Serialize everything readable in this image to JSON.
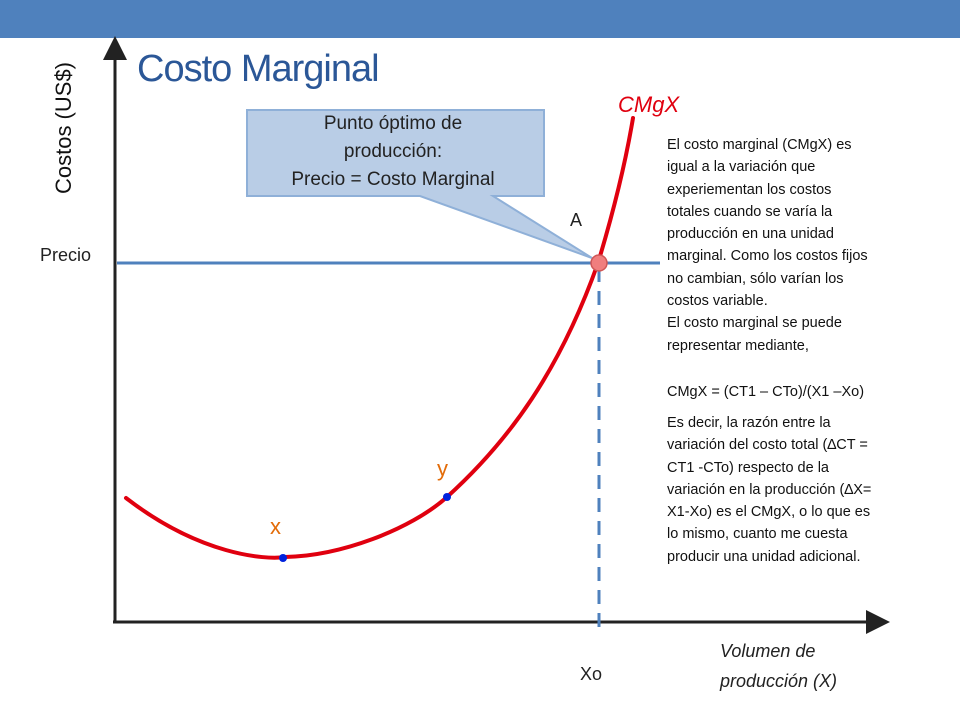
{
  "slide": {
    "title": "Costo Marginal",
    "colors": {
      "top_bar": "#4f81bd",
      "title": "#2b5797",
      "curve": "#e0000f",
      "price_line": "#4f81bd",
      "points": "#0022dd",
      "callout_fill": "#b9cde6",
      "callout_stroke": "#8fb0d8",
      "intersection": "#f07e7e",
      "point_label": "#e36c09"
    }
  },
  "graph": {
    "y_axis_label": "Costos (US$)",
    "x_axis_label": [
      "Volumen de",
      "producción (X)"
    ],
    "price_label": "Precio",
    "curve_label": "CMgX",
    "point_a_label": "A",
    "point_x_label": "x",
    "point_y_label": "y",
    "xo_label": "Xo",
    "callout": [
      "Punto óptimo de",
      "producción:",
      "Precio = Costo Marginal"
    ]
  },
  "explanation": {
    "paragraph_1": [
      "El costo marginal (CMgX) es",
      "igual a la variación que",
      "experiementan los costos",
      "totales cuando se varía la",
      "producción en una unidad",
      "marginal. Como los costos fijos",
      "no cambian, sólo varían los",
      "costos variable.",
      "El costo marginal se puede",
      "representar mediante,"
    ],
    "formula": "CMgX = (CT1 – CTo)/(X1 –Xo)",
    "paragraph_2": [
      "Es decir, la razón entre la",
      "variación del costo total (∆CT =",
      "CT1 -CTo) respecto de la",
      "variación en la producción (∆X=",
      "X1-Xo) es el CMgX, o lo que es",
      "lo mismo, cuanto me cuesta",
      "producir una unidad adicional."
    ]
  }
}
